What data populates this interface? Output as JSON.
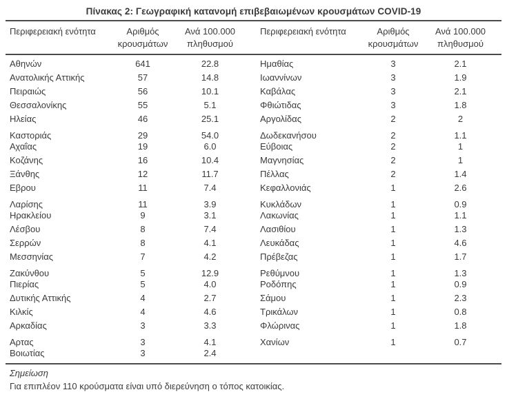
{
  "title": "Πίνακας 2: Γεωγραφική κατανομή επιβεβαιωμένων κρουσμάτων COVID-19",
  "table": {
    "headers": {
      "region": "Περιφερειακή ενότητα",
      "cases_line1": "Αριθμός",
      "cases_line2": "κρουσμάτων",
      "per100k_line1": "Ανά 100.000",
      "per100k_line2": "πληθυσμού"
    },
    "left_rows": [
      {
        "region": "Αθηνών",
        "cases": "641",
        "per100k": "22.8"
      },
      {
        "region": "Ανατολικής Αττικής",
        "cases": "57",
        "per100k": "14.8"
      },
      {
        "region": "Πειραιώς",
        "cases": "56",
        "per100k": "10.1"
      },
      {
        "region": "Θεσσαλονίκης",
        "cases": "55",
        "per100k": "5.1"
      },
      {
        "region": "Ηλείας",
        "cases": "46",
        "per100k": "25.1"
      },
      {
        "region": "Καστοριάς",
        "cases": "29",
        "per100k": "54.0"
      },
      {
        "region": "Αχαΐας",
        "cases": "19",
        "per100k": "6.0"
      },
      {
        "region": "Κοζάνης",
        "cases": "16",
        "per100k": "10.4"
      },
      {
        "region": "Ξάνθης",
        "cases": "12",
        "per100k": "11.7"
      },
      {
        "region": "Εβρου",
        "cases": "11",
        "per100k": "7.4"
      },
      {
        "region": "Λαρίσης",
        "cases": "11",
        "per100k": "3.9"
      },
      {
        "region": "Ηρακλείου",
        "cases": "9",
        "per100k": "3.1"
      },
      {
        "region": "Λέσβου",
        "cases": "8",
        "per100k": "7.4"
      },
      {
        "region": "Σερρών",
        "cases": "8",
        "per100k": "4.1"
      },
      {
        "region": "Μεσσηνίας",
        "cases": "7",
        "per100k": "4.2"
      },
      {
        "region": "Ζακύνθου",
        "cases": "5",
        "per100k": "12.9"
      },
      {
        "region": "Πιερίας",
        "cases": "5",
        "per100k": "4.0"
      },
      {
        "region": "Δυτικής Αττικής",
        "cases": "4",
        "per100k": "2.7"
      },
      {
        "region": "Κιλκίς",
        "cases": "4",
        "per100k": "4.6"
      },
      {
        "region": "Αρκαδίας",
        "cases": "3",
        "per100k": "3.3"
      },
      {
        "region": "Αρτας",
        "cases": "3",
        "per100k": "4.1"
      },
      {
        "region": "Βοιωτίας",
        "cases": "3",
        "per100k": "2.4"
      }
    ],
    "right_rows": [
      {
        "region": "Ημαθίας",
        "cases": "3",
        "per100k": "2.1"
      },
      {
        "region": "Ιωαννίνων",
        "cases": "3",
        "per100k": "1.9"
      },
      {
        "region": "Καβάλας",
        "cases": "3",
        "per100k": "2.1"
      },
      {
        "region": "Φθιώτιδας",
        "cases": "3",
        "per100k": "1.8"
      },
      {
        "region": "Αργολίδας",
        "cases": "2",
        "per100k": "2"
      },
      {
        "region": "Δωδεκανήσου",
        "cases": "2",
        "per100k": "1.1"
      },
      {
        "region": "Εύβοιας",
        "cases": "2",
        "per100k": "1"
      },
      {
        "region": "Μαγνησίας",
        "cases": "2",
        "per100k": "1"
      },
      {
        "region": "Πέλλας",
        "cases": "2",
        "per100k": "1.4"
      },
      {
        "region": "Κεφαλλονιάς",
        "cases": "1",
        "per100k": "2.6"
      },
      {
        "region": "Κυκλάδων",
        "cases": "1",
        "per100k": "0.9"
      },
      {
        "region": "Λακωνίας",
        "cases": "1",
        "per100k": "1.1"
      },
      {
        "region": "Λασιθίου",
        "cases": "1",
        "per100k": "1.3"
      },
      {
        "region": "Λευκάδας",
        "cases": "1",
        "per100k": "4.6"
      },
      {
        "region": "Πρέβεζας",
        "cases": "1",
        "per100k": "1.7"
      },
      {
        "region": "Ρεθύμνου",
        "cases": "1",
        "per100k": "1.3"
      },
      {
        "region": "Ροδόπης",
        "cases": "1",
        "per100k": "0.9"
      },
      {
        "region": "Σάμου",
        "cases": "1",
        "per100k": "2.3"
      },
      {
        "region": "Τρικάλων",
        "cases": "1",
        "per100k": "0.8"
      },
      {
        "region": "Φλώρινας",
        "cases": "1",
        "per100k": "1.8"
      },
      {
        "region": "Χανίων",
        "cases": "1",
        "per100k": "0.7"
      }
    ],
    "rows_per_group": 5
  },
  "note": {
    "label": "Σημείωση",
    "text": "Για επιπλέον 110 κρούσματα είναι υπό διερεύνηση ο τόπος κατοικίας."
  },
  "colors": {
    "text": "#3a3a3a",
    "border": "#4a4a49",
    "background": "#ffffff"
  }
}
